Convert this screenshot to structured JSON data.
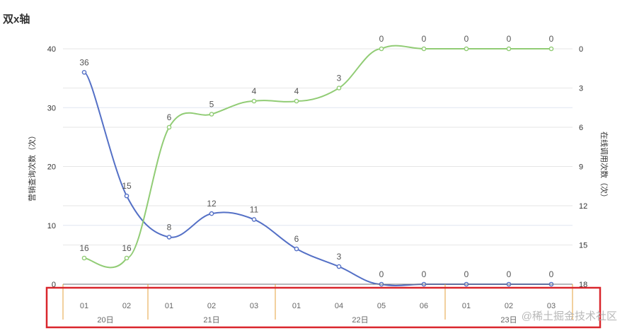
{
  "title": "双x轴",
  "watermark": "@稀土掘金技术社区",
  "chart_data": {
    "type": "line",
    "title": "双x轴",
    "categories": [
      "01",
      "02",
      "01",
      "02",
      "03",
      "01",
      "04",
      "05",
      "06",
      "01",
      "02",
      "03"
    ],
    "groups": [
      {
        "label": "20日",
        "start": 0,
        "end": 1
      },
      {
        "label": "21日",
        "start": 2,
        "end": 4
      },
      {
        "label": "22日",
        "start": 5,
        "end": 8
      },
      {
        "label": "23日",
        "start": 9,
        "end": 11
      }
    ],
    "yleft": {
      "label": "营销查询次数（次）",
      "min": 0,
      "max": 40,
      "ticks": [
        0,
        10,
        20,
        30,
        40
      ]
    },
    "yright": {
      "label": "在线调用次数（次）",
      "min": 0,
      "max": 18,
      "inverse": true,
      "ticks": [
        0,
        3,
        6,
        9,
        12,
        15,
        18
      ]
    },
    "series": [
      {
        "axis": "left",
        "color": "#5470c6",
        "values": [
          36,
          15,
          8,
          12,
          11,
          6,
          3,
          0,
          0,
          0,
          0,
          0
        ],
        "labels": [
          {
            "i": 0,
            "text": "36"
          },
          {
            "i": 1,
            "text": "15"
          },
          {
            "i": 2,
            "text": "8"
          },
          {
            "i": 3,
            "text": "12"
          },
          {
            "i": 4,
            "text": "11"
          },
          {
            "i": 5,
            "text": "6"
          },
          {
            "i": 6,
            "text": "3"
          },
          {
            "i": 7,
            "text": "0"
          },
          {
            "i": 8,
            "text": "0"
          },
          {
            "i": 9,
            "text": "0"
          },
          {
            "i": 10,
            "text": "0"
          },
          {
            "i": 11,
            "text": "0"
          }
        ]
      },
      {
        "axis": "right",
        "color": "#91cc75",
        "values": [
          16,
          16,
          6,
          5,
          4,
          4,
          3,
          0,
          0,
          0,
          0,
          0
        ],
        "labels": [
          {
            "i": 0,
            "text": "16"
          },
          {
            "i": 1,
            "text": "16"
          },
          {
            "i": 2,
            "text": "6"
          },
          {
            "i": 3,
            "text": "5"
          },
          {
            "i": 4,
            "text": "4"
          },
          {
            "i": 5,
            "text": "4"
          },
          {
            "i": 6,
            "text": "3"
          },
          {
            "i": 7,
            "text": "0"
          },
          {
            "i": 8,
            "text": "0"
          },
          {
            "i": 9,
            "text": "0"
          },
          {
            "i": 10,
            "text": "0"
          },
          {
            "i": 11,
            "text": "0"
          }
        ]
      }
    ],
    "highlight_color": "#d9262c",
    "group_separator_color": "#e6a23c"
  }
}
